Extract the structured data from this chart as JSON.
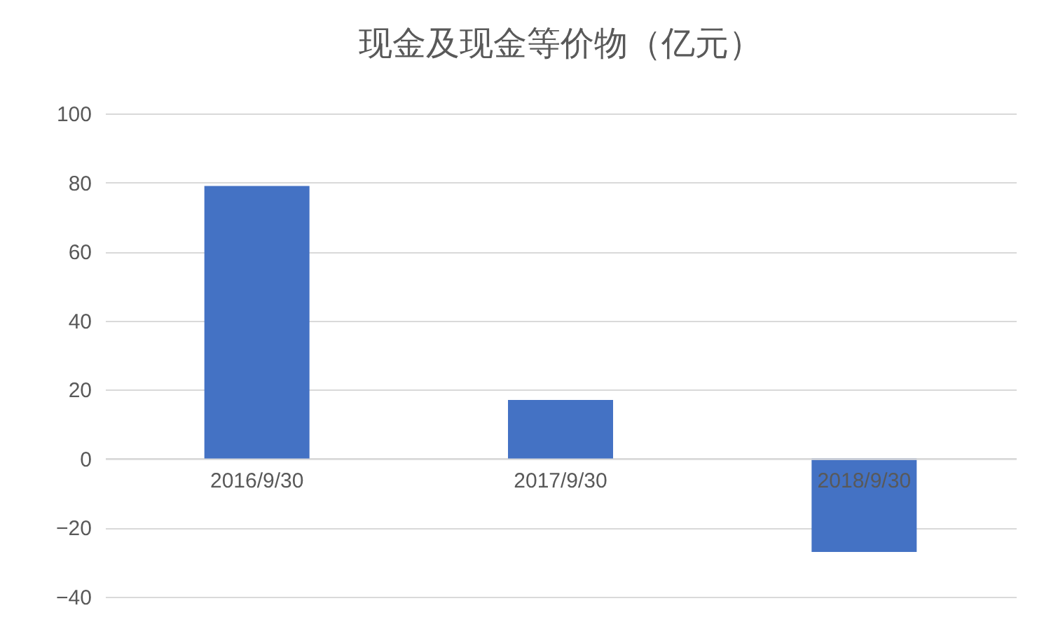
{
  "chart_data": {
    "type": "bar",
    "title": "现金及现金等价物（亿元）",
    "categories": [
      "2016/9/30",
      "2017/9/30",
      "2018/9/30"
    ],
    "values": [
      79,
      17,
      -27
    ],
    "color": "#4472c4",
    "ylim": [
      -40,
      100
    ],
    "yticks": [
      -40,
      -20,
      0,
      20,
      40,
      60,
      80,
      100
    ],
    "grid": "y"
  }
}
